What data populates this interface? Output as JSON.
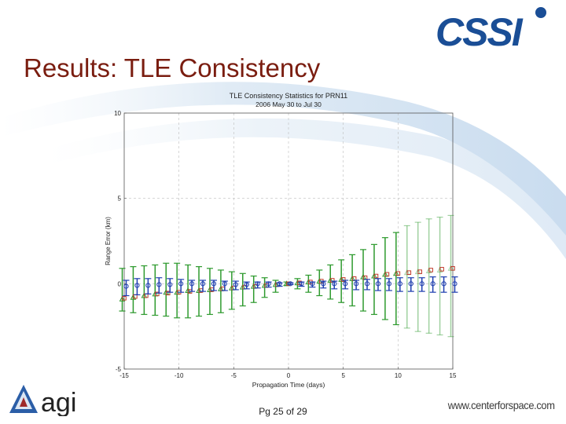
{
  "slide": {
    "title": "Results: TLE Consistency",
    "page_label": "Pg 25 of 29",
    "website": "www.centerforspace.com",
    "logos": {
      "top_right": "CSSI",
      "bottom_left": "agi"
    },
    "title_color": "#7a1d10"
  },
  "chart_data": {
    "type": "scatter",
    "title": "TLE Consistency Statistics for PRN11",
    "subtitle": "2006 May 30 to Jul 30",
    "xlabel": "Propagation Time (days)",
    "ylabel": "Range Error (km)",
    "xlim": [
      -15,
      15
    ],
    "ylim": [
      -5,
      10
    ],
    "xticks": [
      -15,
      -10,
      -5,
      0,
      5,
      10,
      15
    ],
    "yticks": [
      -5,
      0,
      5,
      10
    ],
    "grid": true,
    "series": [
      {
        "name": "green",
        "color": "#2e9a2e",
        "marker": "triangle",
        "x": [
          -15,
          -14,
          -13,
          -12,
          -11,
          -10,
          -9,
          -8,
          -7,
          -6,
          -5,
          -4,
          -3,
          -2,
          -1,
          0,
          1,
          2,
          3,
          4,
          5,
          6,
          7,
          8,
          9,
          10,
          11,
          12,
          13,
          14,
          15
        ],
        "center": [
          -0.9,
          -0.8,
          -0.7,
          -0.6,
          -0.5,
          -0.5,
          -0.4,
          -0.4,
          -0.35,
          -0.3,
          -0.25,
          -0.2,
          -0.15,
          -0.1,
          -0.05,
          0,
          0.05,
          0.1,
          0.15,
          0.2,
          0.25,
          0.3,
          0.4,
          0.45,
          0.55,
          0.6,
          0.65,
          0.7,
          0.75,
          0.8,
          0.9
        ],
        "upper": [
          0.9,
          1.0,
          1.05,
          1.1,
          1.2,
          1.2,
          1.1,
          1.0,
          0.9,
          0.8,
          0.7,
          0.6,
          0.45,
          0.35,
          0.2,
          0.1,
          0.3,
          0.5,
          0.8,
          1.1,
          1.4,
          1.7,
          2.0,
          2.3,
          2.7,
          3.0,
          3.4,
          3.6,
          3.8,
          3.9,
          4.0
        ],
        "lower": [
          -1.6,
          -1.7,
          -1.8,
          -1.85,
          -1.9,
          -2.0,
          -2.0,
          -1.9,
          -1.8,
          -1.7,
          -1.5,
          -1.3,
          -1.1,
          -0.8,
          -0.5,
          -0.1,
          -0.3,
          -0.5,
          -0.7,
          -0.9,
          -1.1,
          -1.3,
          -1.6,
          -1.8,
          -2.1,
          -2.4,
          -2.6,
          -2.8,
          -2.9,
          -3.0,
          -3.1
        ]
      },
      {
        "name": "red",
        "color": "#c0392b",
        "marker": "square",
        "x": [
          -15,
          -14,
          -13,
          -12,
          -11,
          -10,
          -9,
          -8,
          -7,
          -6,
          -5,
          -4,
          -3,
          -2,
          -1,
          0,
          1,
          2,
          3,
          4,
          5,
          6,
          7,
          8,
          9,
          10,
          11,
          12,
          13,
          14,
          15
        ],
        "center": [
          -0.85,
          -0.75,
          -0.7,
          -0.6,
          -0.55,
          -0.5,
          -0.45,
          -0.4,
          -0.35,
          -0.3,
          -0.25,
          -0.2,
          -0.15,
          -0.1,
          -0.05,
          0,
          0.05,
          0.1,
          0.15,
          0.2,
          0.25,
          0.3,
          0.35,
          0.45,
          0.55,
          0.6,
          0.65,
          0.7,
          0.8,
          0.85,
          0.9
        ]
      },
      {
        "name": "blue",
        "color": "#1f3fb0",
        "marker": "circle",
        "x": [
          -15,
          -14,
          -13,
          -12,
          -11,
          -10,
          -9,
          -8,
          -7,
          -6,
          -5,
          -4,
          -3,
          -2,
          -1,
          0,
          1,
          2,
          3,
          4,
          5,
          6,
          7,
          8,
          9,
          10,
          11,
          12,
          13,
          14,
          15
        ],
        "center": [
          -0.15,
          -0.1,
          -0.1,
          -0.05,
          -0.05,
          0,
          0,
          0,
          0,
          0,
          -0.05,
          -0.05,
          0,
          0,
          0,
          0,
          0,
          0,
          0,
          0,
          0,
          0,
          0,
          0,
          0,
          0,
          0,
          0,
          0,
          0,
          0
        ],
        "upper": [
          0.2,
          0.3,
          0.3,
          0.35,
          0.3,
          0.25,
          0.2,
          0.2,
          0.2,
          0.15,
          0.15,
          0.1,
          0.1,
          0.1,
          0.05,
          0.05,
          0.1,
          0.1,
          0.15,
          0.15,
          0.2,
          0.2,
          0.25,
          0.3,
          0.3,
          0.35,
          0.35,
          0.35,
          0.4,
          0.4,
          0.4
        ],
        "lower": [
          -0.7,
          -0.65,
          -0.6,
          -0.55,
          -0.5,
          -0.5,
          -0.45,
          -0.45,
          -0.4,
          -0.4,
          -0.35,
          -0.3,
          -0.25,
          -0.2,
          -0.15,
          -0.05,
          -0.15,
          -0.2,
          -0.25,
          -0.3,
          -0.3,
          -0.35,
          -0.35,
          -0.4,
          -0.4,
          -0.45,
          -0.45,
          -0.45,
          -0.5,
          -0.5,
          -0.5
        ]
      }
    ]
  }
}
